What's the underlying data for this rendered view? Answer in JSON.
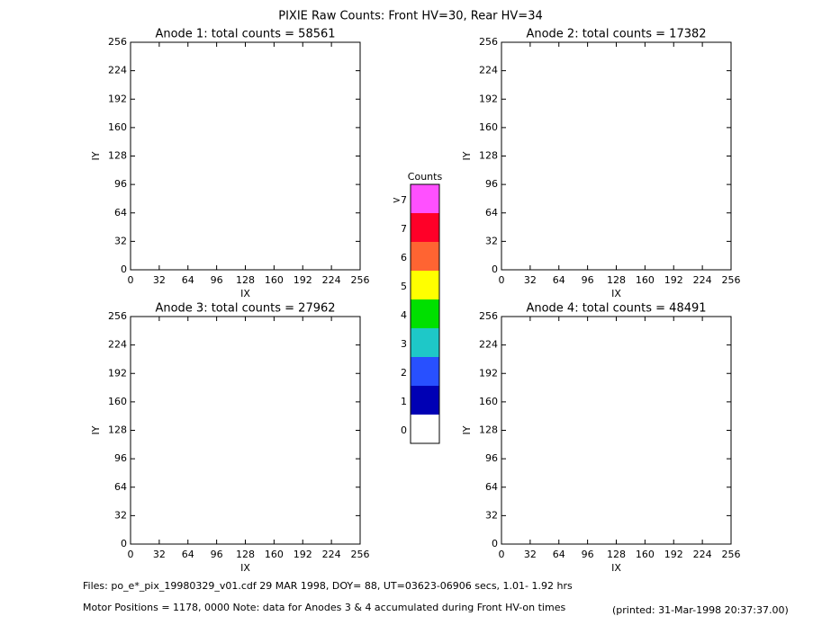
{
  "title": "PIXIE Raw Counts:  Front HV=30, Rear HV=34",
  "chart_data": [
    {
      "type": "heatmap",
      "title": "Anode 1: total counts = 58561",
      "x_label": "IX",
      "y_label": "IY",
      "xlim": [
        0,
        256
      ],
      "ylim": [
        0,
        256
      ],
      "xticks": [
        0,
        32,
        64,
        96,
        128,
        160,
        192,
        224,
        256
      ],
      "yticks": [
        0,
        32,
        64,
        96,
        128,
        160,
        192,
        224,
        256
      ]
    },
    {
      "type": "heatmap",
      "title": "Anode 2: total counts = 17382",
      "x_label": "IX",
      "y_label": "IY",
      "xlim": [
        0,
        256
      ],
      "ylim": [
        0,
        256
      ],
      "xticks": [
        0,
        32,
        64,
        96,
        128,
        160,
        192,
        224,
        256
      ],
      "yticks": [
        0,
        32,
        64,
        96,
        128,
        160,
        192,
        224,
        256
      ]
    },
    {
      "type": "heatmap",
      "title": "Anode 3: total counts = 27962",
      "x_label": "IX",
      "y_label": "IY",
      "xlim": [
        0,
        256
      ],
      "ylim": [
        0,
        256
      ],
      "xticks": [
        0,
        32,
        64,
        96,
        128,
        160,
        192,
        224,
        256
      ],
      "yticks": [
        0,
        32,
        64,
        96,
        128,
        160,
        192,
        224,
        256
      ]
    },
    {
      "type": "heatmap",
      "title": "Anode 4: total counts = 48491",
      "x_label": "IX",
      "y_label": "IY",
      "xlim": [
        0,
        256
      ],
      "ylim": [
        0,
        256
      ],
      "xticks": [
        0,
        32,
        64,
        96,
        128,
        160,
        192,
        224,
        256
      ],
      "yticks": [
        0,
        32,
        64,
        96,
        128,
        160,
        192,
        224,
        256
      ]
    }
  ],
  "colorbar": {
    "title": "Counts",
    "levels": [
      "0",
      "1",
      "2",
      "3",
      "4",
      "5",
      "6",
      "7",
      ">7"
    ],
    "colors": [
      "#ffffff",
      "#0000b4",
      "#2850ff",
      "#1ec8c8",
      "#00e000",
      "#ffff00",
      "#ff6432",
      "#ff0028",
      "#ff50ff"
    ]
  },
  "footer": {
    "files": "Files: po_e*_pix_19980329_v01.cdf    29 MAR 1998, DOY= 88, UT=03623-06906 secs,  1.01- 1.92 hrs",
    "motor": "Motor Positions = 1178, 0000   Note: data for Anodes 3 & 4 accumulated during Front HV-on times",
    "printed": "(printed: 31-Mar-1998 20:37:37.00)"
  }
}
